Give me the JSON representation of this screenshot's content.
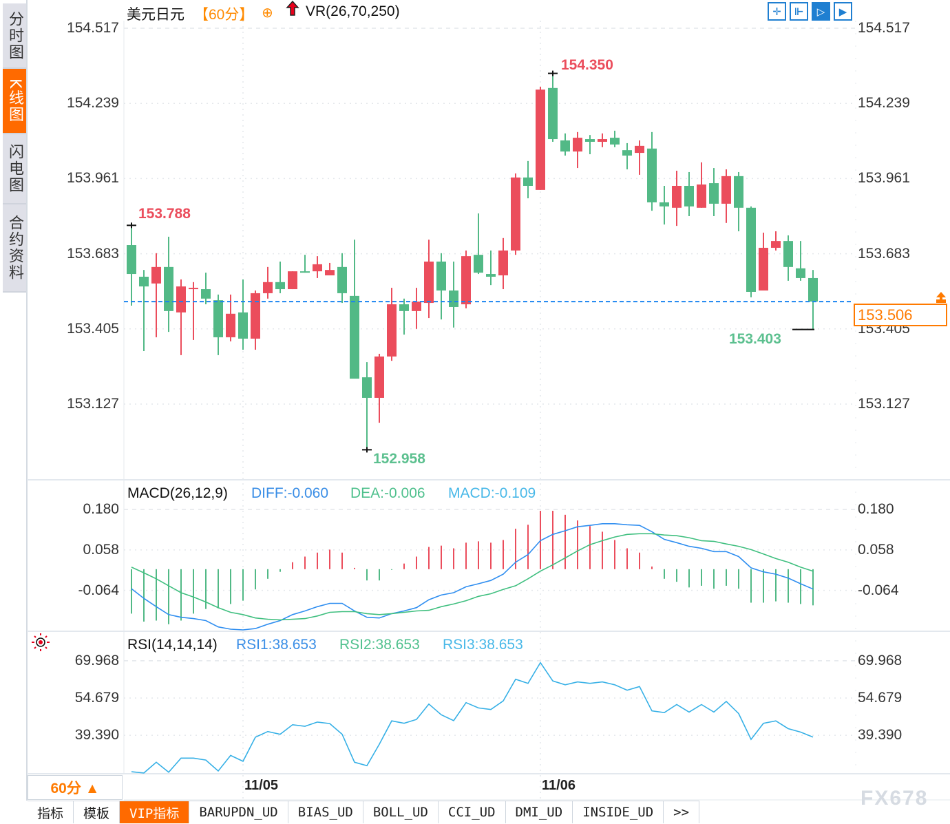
{
  "sidebar": {
    "items": [
      {
        "label": "分时图",
        "active": false
      },
      {
        "label": "K线图",
        "active": true
      },
      {
        "label": "闪电图",
        "active": false
      },
      {
        "label": "合约资料",
        "active": false
      }
    ]
  },
  "header": {
    "symbol": "美元日元",
    "period": "【60分】",
    "add_icon": "circle-plus-icon",
    "arrow_icon": "red-up-arrow-icon",
    "indicator": "VR(26,70,250)"
  },
  "toolbar": {
    "icons": [
      "crosshair-move-icon",
      "zoom-in-left-icon",
      "zoom-out-right-icon",
      "scroll-to-latest-icon"
    ]
  },
  "current_price": {
    "value": "153.506"
  },
  "macd_header": {
    "name": "MACD(26,12,9)",
    "diff": "DIFF:-0.060",
    "dea": "DEA:-0.006",
    "macd": "MACD:-0.109"
  },
  "rsi_header": {
    "name": "RSI(14,14,14)",
    "rsi1": "RSI1:38.653",
    "rsi2": "RSI2:38.653",
    "rsi3": "RSI3:38.653",
    "icon": "sun-settings-icon"
  },
  "period_selector": {
    "label": "60分 ▲"
  },
  "tabs": [
    "指标",
    "模板",
    "VIP指标",
    "BARUPDN_UD",
    "BIAS_UD",
    "BOLL_UD",
    "CCI_UD",
    "DMI_UD",
    "INSIDE_UD",
    ">>"
  ],
  "active_tab": "VIP指标",
  "watermark": "FX678",
  "colors": {
    "up": "#eb4d5c",
    "down": "#52b986",
    "current_line": "#1a84f0",
    "accent": "#ff6a00",
    "diff": "#2f8ef0",
    "dea": "#3fbf7f",
    "macd_label": "#48b8e8",
    "rsi": "#36b0e6"
  },
  "chart_data": [
    {
      "type": "candlestick",
      "title": "美元日元",
      "ylim": [
        152.852,
        154.545
      ],
      "y_ticks": [
        "154.517",
        "154.239",
        "153.961",
        "153.683",
        "153.405",
        "153.127"
      ],
      "x_labels": [
        {
          "label": "11/05",
          "index": 9
        },
        {
          "label": "11/06",
          "index": 33
        }
      ],
      "annotations": {
        "high": {
          "label": "154.350",
          "index": 34
        },
        "low": {
          "label": "152.958",
          "index": 19
        },
        "left_high": {
          "label": "153.788",
          "index": 0
        },
        "right_low": {
          "label": "153.403",
          "index": 55
        }
      },
      "current_price": 153.506,
      "ohlc": [
        [
          153.715,
          153.788,
          153.491,
          153.608
        ],
        [
          153.598,
          153.623,
          153.323,
          153.562
        ],
        [
          153.573,
          153.685,
          153.374,
          153.634
        ],
        [
          153.634,
          153.746,
          153.394,
          153.471
        ],
        [
          153.466,
          153.588,
          153.308,
          153.562
        ],
        [
          153.552,
          153.578,
          153.364,
          153.557
        ],
        [
          153.552,
          153.613,
          153.496,
          153.517
        ],
        [
          153.511,
          153.532,
          153.308,
          153.374
        ],
        [
          153.374,
          153.532,
          153.359,
          153.461
        ],
        [
          153.466,
          153.588,
          153.328,
          153.369
        ],
        [
          153.369,
          153.547,
          153.328,
          153.537
        ],
        [
          153.537,
          153.634,
          153.517,
          153.578
        ],
        [
          153.578,
          153.654,
          153.537,
          153.552
        ],
        [
          153.552,
          153.618,
          153.552,
          153.618
        ],
        [
          153.618,
          153.679,
          153.613,
          153.613
        ],
        [
          153.618,
          153.674,
          153.593,
          153.644
        ],
        [
          153.603,
          153.649,
          153.603,
          153.623
        ],
        [
          153.634,
          153.685,
          153.501,
          153.537
        ],
        [
          153.527,
          153.735,
          153.221,
          153.221
        ],
        [
          153.226,
          153.282,
          152.958,
          153.15
        ],
        [
          153.15,
          153.313,
          153.058,
          153.303
        ],
        [
          153.303,
          153.557,
          153.287,
          153.496
        ],
        [
          153.496,
          153.517,
          153.384,
          153.471
        ],
        [
          153.471,
          153.557,
          153.405,
          153.506
        ],
        [
          153.501,
          153.735,
          153.445,
          153.654
        ],
        [
          153.654,
          153.685,
          153.44,
          153.547
        ],
        [
          153.547,
          153.654,
          153.41,
          153.486
        ],
        [
          153.496,
          153.695,
          153.481,
          153.674
        ],
        [
          153.679,
          153.832,
          153.608,
          153.613
        ],
        [
          153.608,
          153.695,
          153.567,
          153.598
        ],
        [
          153.603,
          153.741,
          153.552,
          153.695
        ],
        [
          153.695,
          153.98,
          153.679,
          153.965
        ],
        [
          153.965,
          154.026,
          153.888,
          153.934
        ],
        [
          153.919,
          154.301,
          153.919,
          154.29
        ],
        [
          154.296,
          154.35,
          154.097,
          154.107
        ],
        [
          154.102,
          154.128,
          154.046,
          154.061
        ],
        [
          154.061,
          154.133,
          154.0,
          154.112
        ],
        [
          154.107,
          154.122,
          154.051,
          154.097
        ],
        [
          154.097,
          154.128,
          154.077,
          154.107
        ],
        [
          154.112,
          154.138,
          154.077,
          154.087
        ],
        [
          154.066,
          154.092,
          153.995,
          154.046
        ],
        [
          154.056,
          154.102,
          153.975,
          154.082
        ],
        [
          154.072,
          154.133,
          153.842,
          153.873
        ],
        [
          153.873,
          153.934,
          153.791,
          153.858
        ],
        [
          153.853,
          153.99,
          153.786,
          153.934
        ],
        [
          153.934,
          153.985,
          153.822,
          153.858
        ],
        [
          153.853,
          154.021,
          153.853,
          153.939
        ],
        [
          153.944,
          154.0,
          153.822,
          153.868
        ],
        [
          153.868,
          153.995,
          153.797,
          153.97
        ],
        [
          153.97,
          153.985,
          153.766,
          153.853
        ],
        [
          153.853,
          153.858,
          153.522,
          153.542
        ],
        [
          153.547,
          153.761,
          153.547,
          153.705
        ],
        [
          153.705,
          153.766,
          153.695,
          153.73
        ],
        [
          153.73,
          153.751,
          153.583,
          153.634
        ],
        [
          153.629,
          153.73,
          153.583,
          153.593
        ],
        [
          153.593,
          153.623,
          153.403,
          153.506
        ]
      ]
    },
    {
      "type": "bar",
      "title": "MACD(26,12,9)",
      "ylim": [
        -0.183,
        0.201
      ],
      "y_ticks": [
        "0.180",
        "0.058",
        "-0.064"
      ],
      "series": [
        {
          "name": "MACD",
          "kind": "histogram",
          "values": [
            -0.134,
            -0.158,
            -0.155,
            -0.166,
            -0.155,
            -0.134,
            -0.12,
            -0.118,
            -0.105,
            -0.095,
            -0.061,
            -0.029,
            -0.008,
            0.021,
            0.038,
            0.05,
            0.059,
            0.05,
            0.004,
            -0.034,
            -0.034,
            -0.002,
            0.017,
            0.038,
            0.067,
            0.071,
            0.063,
            0.08,
            0.084,
            0.08,
            0.088,
            0.122,
            0.134,
            0.176,
            0.176,
            0.164,
            0.147,
            0.13,
            0.113,
            0.088,
            0.063,
            0.05,
            0.008,
            -0.029,
            -0.038,
            -0.055,
            -0.05,
            -0.059,
            -0.05,
            -0.059,
            -0.101,
            -0.101,
            -0.097,
            -0.101,
            -0.105,
            -0.109
          ]
        },
        {
          "name": "DIFF",
          "kind": "line",
          "values": [
            -0.059,
            -0.088,
            -0.113,
            -0.137,
            -0.145,
            -0.149,
            -0.155,
            -0.174,
            -0.181,
            -0.183,
            -0.179,
            -0.166,
            -0.155,
            -0.137,
            -0.126,
            -0.113,
            -0.103,
            -0.103,
            -0.126,
            -0.145,
            -0.147,
            -0.134,
            -0.126,
            -0.116,
            -0.092,
            -0.078,
            -0.071,
            -0.053,
            -0.044,
            -0.034,
            -0.015,
            0.021,
            0.044,
            0.086,
            0.105,
            0.116,
            0.128,
            0.132,
            0.137,
            0.137,
            0.134,
            0.132,
            0.113,
            0.09,
            0.08,
            0.069,
            0.063,
            0.053,
            0.053,
            0.038,
            0.004,
            -0.008,
            -0.015,
            -0.027,
            -0.044,
            -0.06
          ]
        },
        {
          "name": "DEA",
          "kind": "line",
          "values": [
            0.006,
            -0.011,
            -0.029,
            -0.05,
            -0.071,
            -0.084,
            -0.099,
            -0.116,
            -0.13,
            -0.137,
            -0.147,
            -0.151,
            -0.153,
            -0.151,
            -0.149,
            -0.141,
            -0.13,
            -0.128,
            -0.128,
            -0.134,
            -0.137,
            -0.134,
            -0.13,
            -0.126,
            -0.124,
            -0.113,
            -0.105,
            -0.095,
            -0.082,
            -0.074,
            -0.061,
            -0.05,
            -0.029,
            -0.006,
            0.013,
            0.034,
            0.055,
            0.074,
            0.086,
            0.097,
            0.105,
            0.107,
            0.107,
            0.103,
            0.101,
            0.095,
            0.086,
            0.084,
            0.076,
            0.069,
            0.059,
            0.046,
            0.032,
            0.021,
            0.006,
            -0.006
          ]
        }
      ]
    },
    {
      "type": "line",
      "title": "RSI(14,14,14)",
      "ylim": [
        23.3,
        75.6
      ],
      "y_ticks": [
        "69.968",
        "54.679",
        "39.390"
      ],
      "series": [
        {
          "name": "RSI1",
          "values": [
            24.4,
            23.9,
            28.3,
            24.2,
            30.0,
            30.0,
            29.2,
            24.7,
            31.1,
            28.7,
            38.6,
            40.9,
            39.8,
            43.7,
            43.1,
            44.8,
            44.2,
            39.8,
            28.3,
            26.9,
            35.7,
            45.3,
            44.3,
            45.9,
            52.2,
            47.8,
            45.4,
            52.8,
            50.6,
            49.95,
            53.5,
            62.4,
            60.7,
            69.2,
            61.7,
            60.1,
            61.3,
            60.7,
            61.3,
            60.1,
            57.9,
            59.4,
            49.4,
            48.7,
            52.0,
            48.9,
            52.0,
            48.9,
            53.3,
            48.3,
            37.7,
            44.3,
            45.3,
            42.1,
            40.7,
            38.653
          ]
        }
      ]
    }
  ]
}
